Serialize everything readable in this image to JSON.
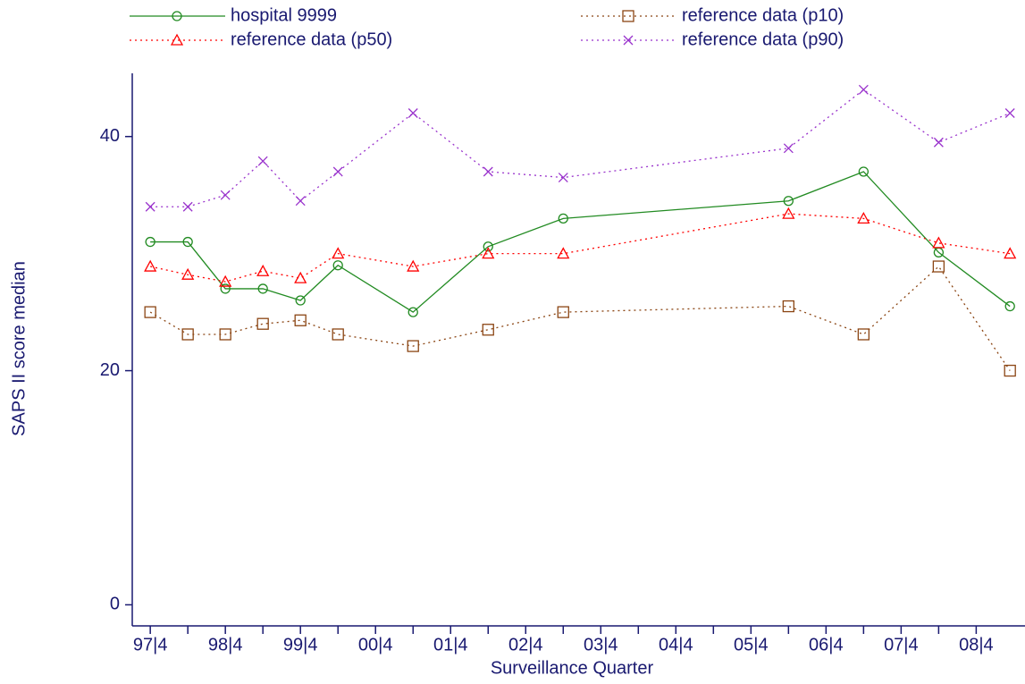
{
  "chart_data": {
    "type": "line",
    "x": [
      1997.75,
      1998.25,
      1998.75,
      1999.25,
      1999.75,
      2000.25,
      2001.25,
      2002.25,
      2003.25,
      2006.25,
      2007.25,
      2008.25,
      2009.2
    ],
    "series": [
      {
        "name": "hospital 9999",
        "color": "#228b22",
        "dash": "solid",
        "marker": "circle",
        "values": [
          31,
          31,
          27,
          27,
          26,
          29,
          25,
          30.6,
          33,
          34.5,
          37,
          30.1,
          25.5
        ]
      },
      {
        "name": "reference data (p10)",
        "color": "#8b4513",
        "dash": "dotted",
        "marker": "square",
        "values": [
          25,
          23.1,
          23.1,
          24,
          24.3,
          23.1,
          22.1,
          23.5,
          25,
          25.5,
          23.1,
          28.9,
          20
        ]
      },
      {
        "name": "reference data (p50)",
        "color": "#ff0000",
        "dash": "dotted",
        "marker": "triangle",
        "values": [
          28.9,
          28.2,
          27.6,
          28.5,
          27.9,
          30,
          28.9,
          30,
          30,
          33.4,
          33,
          30.9,
          30
        ]
      },
      {
        "name": "reference data (p90)",
        "color": "#9932cc",
        "dash": "dotted",
        "marker": "x",
        "values": [
          34,
          34,
          35,
          37.9,
          34.5,
          37,
          42,
          37,
          36.5,
          39,
          44,
          39.5,
          42
        ]
      }
    ],
    "xlabel": "Surveillance Quarter",
    "ylabel": "SAPS II score median",
    "xlim": [
      1997.51,
      2009.4
    ],
    "xticks": [
      {
        "value": 1997.75,
        "label": "97|4"
      },
      {
        "value": 1998.75,
        "label": "98|4"
      },
      {
        "value": 1999.75,
        "label": "99|4"
      },
      {
        "value": 2000.75,
        "label": "00|4"
      },
      {
        "value": 2001.75,
        "label": "01|4"
      },
      {
        "value": 2002.75,
        "label": "02|4"
      },
      {
        "value": 2003.75,
        "label": "03|4"
      },
      {
        "value": 2004.75,
        "label": "04|4"
      },
      {
        "value": 2005.75,
        "label": "05|4"
      },
      {
        "value": 2006.75,
        "label": "06|4"
      },
      {
        "value": 2007.75,
        "label": "07|4"
      },
      {
        "value": 2008.75,
        "label": "08|4"
      }
    ],
    "xminorticks": [
      1998.25,
      1999.25,
      2000.25,
      2001.25,
      2002.25,
      2003.25,
      2004.25,
      2005.25,
      2006.25,
      2007.25,
      2008.25
    ],
    "ylim": [
      -1.8,
      45.4
    ],
    "yticks": [
      0,
      20,
      40
    ],
    "axis_color": "#191970"
  }
}
